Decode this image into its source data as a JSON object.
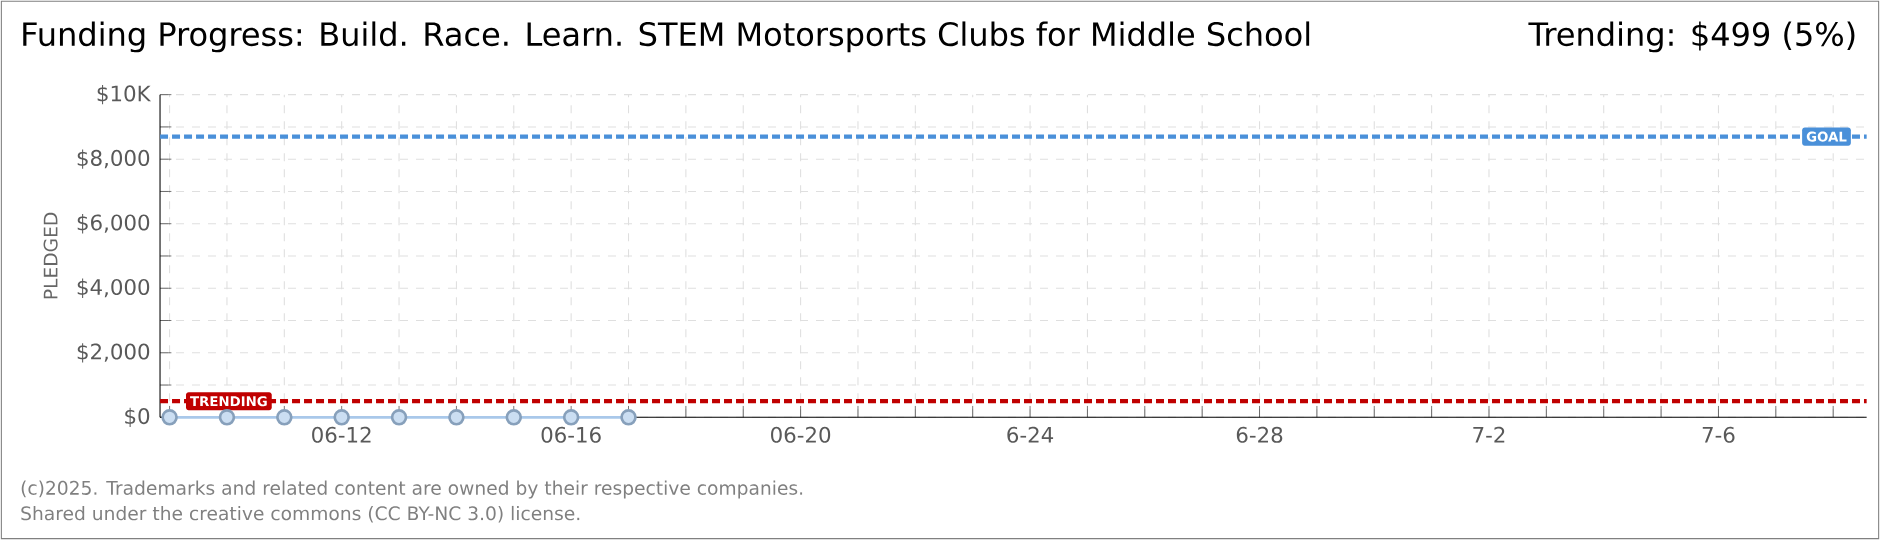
{
  "chart_data": {
    "type": "line",
    "title": "Funding Progress: Build. Race. Learn. STEM Motorsports Clubs for Middle School",
    "ylabel": "PLEDGED",
    "x": [
      "2025-06-09",
      "2025-06-10",
      "2025-06-11",
      "2025-06-12",
      "2025-06-13",
      "2025-06-14",
      "2025-06-15",
      "2025-06-16",
      "2025-06-17"
    ],
    "series": [
      {
        "color": "#a9c8ea",
        "values": [
          0,
          0,
          0,
          0,
          0,
          0,
          0,
          0,
          0
        ]
      }
    ],
    "marker": "circle",
    "xlim": [
      "2025-06-08T20:00",
      "2025-07-08T14:00"
    ],
    "xticks": [
      {
        "value": "2025-06-09",
        "label": null
      },
      {
        "value": "2025-06-10",
        "label": null
      },
      {
        "value": "2025-06-11",
        "label": null
      },
      {
        "value": "2025-06-12",
        "label": "06-12"
      },
      {
        "value": "2025-06-13",
        "label": null
      },
      {
        "value": "2025-06-14",
        "label": null
      },
      {
        "value": "2025-06-15",
        "label": null
      },
      {
        "value": "2025-06-16",
        "label": "06-16"
      },
      {
        "value": "2025-06-17",
        "label": null
      },
      {
        "value": "2025-06-18",
        "label": null
      },
      {
        "value": "2025-06-19",
        "label": null
      },
      {
        "value": "2025-06-20",
        "label": "06-20"
      },
      {
        "value": "2025-06-21",
        "label": null
      },
      {
        "value": "2025-06-22",
        "label": null
      },
      {
        "value": "2025-06-23",
        "label": null
      },
      {
        "value": "2025-06-24",
        "label": "6-24"
      },
      {
        "value": "2025-06-25",
        "label": null
      },
      {
        "value": "2025-06-26",
        "label": null
      },
      {
        "value": "2025-06-27",
        "label": null
      },
      {
        "value": "2025-06-28",
        "label": "6-28"
      },
      {
        "value": "2025-06-29",
        "label": null
      },
      {
        "value": "2025-06-30",
        "label": null
      },
      {
        "value": "2025-07-01",
        "label": null
      },
      {
        "value": "2025-07-02",
        "label": "7-2"
      },
      {
        "value": "2025-07-03",
        "label": null
      },
      {
        "value": "2025-07-04",
        "label": null
      },
      {
        "value": "2025-07-05",
        "label": null
      },
      {
        "value": "2025-07-06",
        "label": "7-6"
      },
      {
        "value": "2025-07-07",
        "label": null
      },
      {
        "value": "2025-07-08",
        "label": null
      }
    ],
    "ylim": [
      0,
      10000
    ],
    "yticks": [
      {
        "value": 0,
        "label": "$0"
      },
      {
        "value": 1000,
        "label": null
      },
      {
        "value": 2000,
        "label": "$2,000"
      },
      {
        "value": 3000,
        "label": null
      },
      {
        "value": 4000,
        "label": "$4,000"
      },
      {
        "value": 5000,
        "label": null
      },
      {
        "value": 6000,
        "label": "$6,000"
      },
      {
        "value": 7000,
        "label": null
      },
      {
        "value": 8000,
        "label": "$8,000"
      },
      {
        "value": 9000,
        "label": null
      },
      {
        "value": 10000,
        "label": "$10K"
      }
    ],
    "grid": true,
    "ref_lines": [
      {
        "axis": "y",
        "value": 8700,
        "label": "GOAL",
        "color": "#4a90d9",
        "line_style": "dotted"
      },
      {
        "axis": "y",
        "value": 499,
        "label": "TRENDING",
        "color": "#c00000",
        "line_style": "dotted"
      }
    ],
    "annotations": [
      "Trending: $499 (5%)",
      "(c)2025. Trademarks and related content are owned by their respective companies.",
      "Shared under the creative commons (CC BY-NC 3.0) license."
    ]
  }
}
